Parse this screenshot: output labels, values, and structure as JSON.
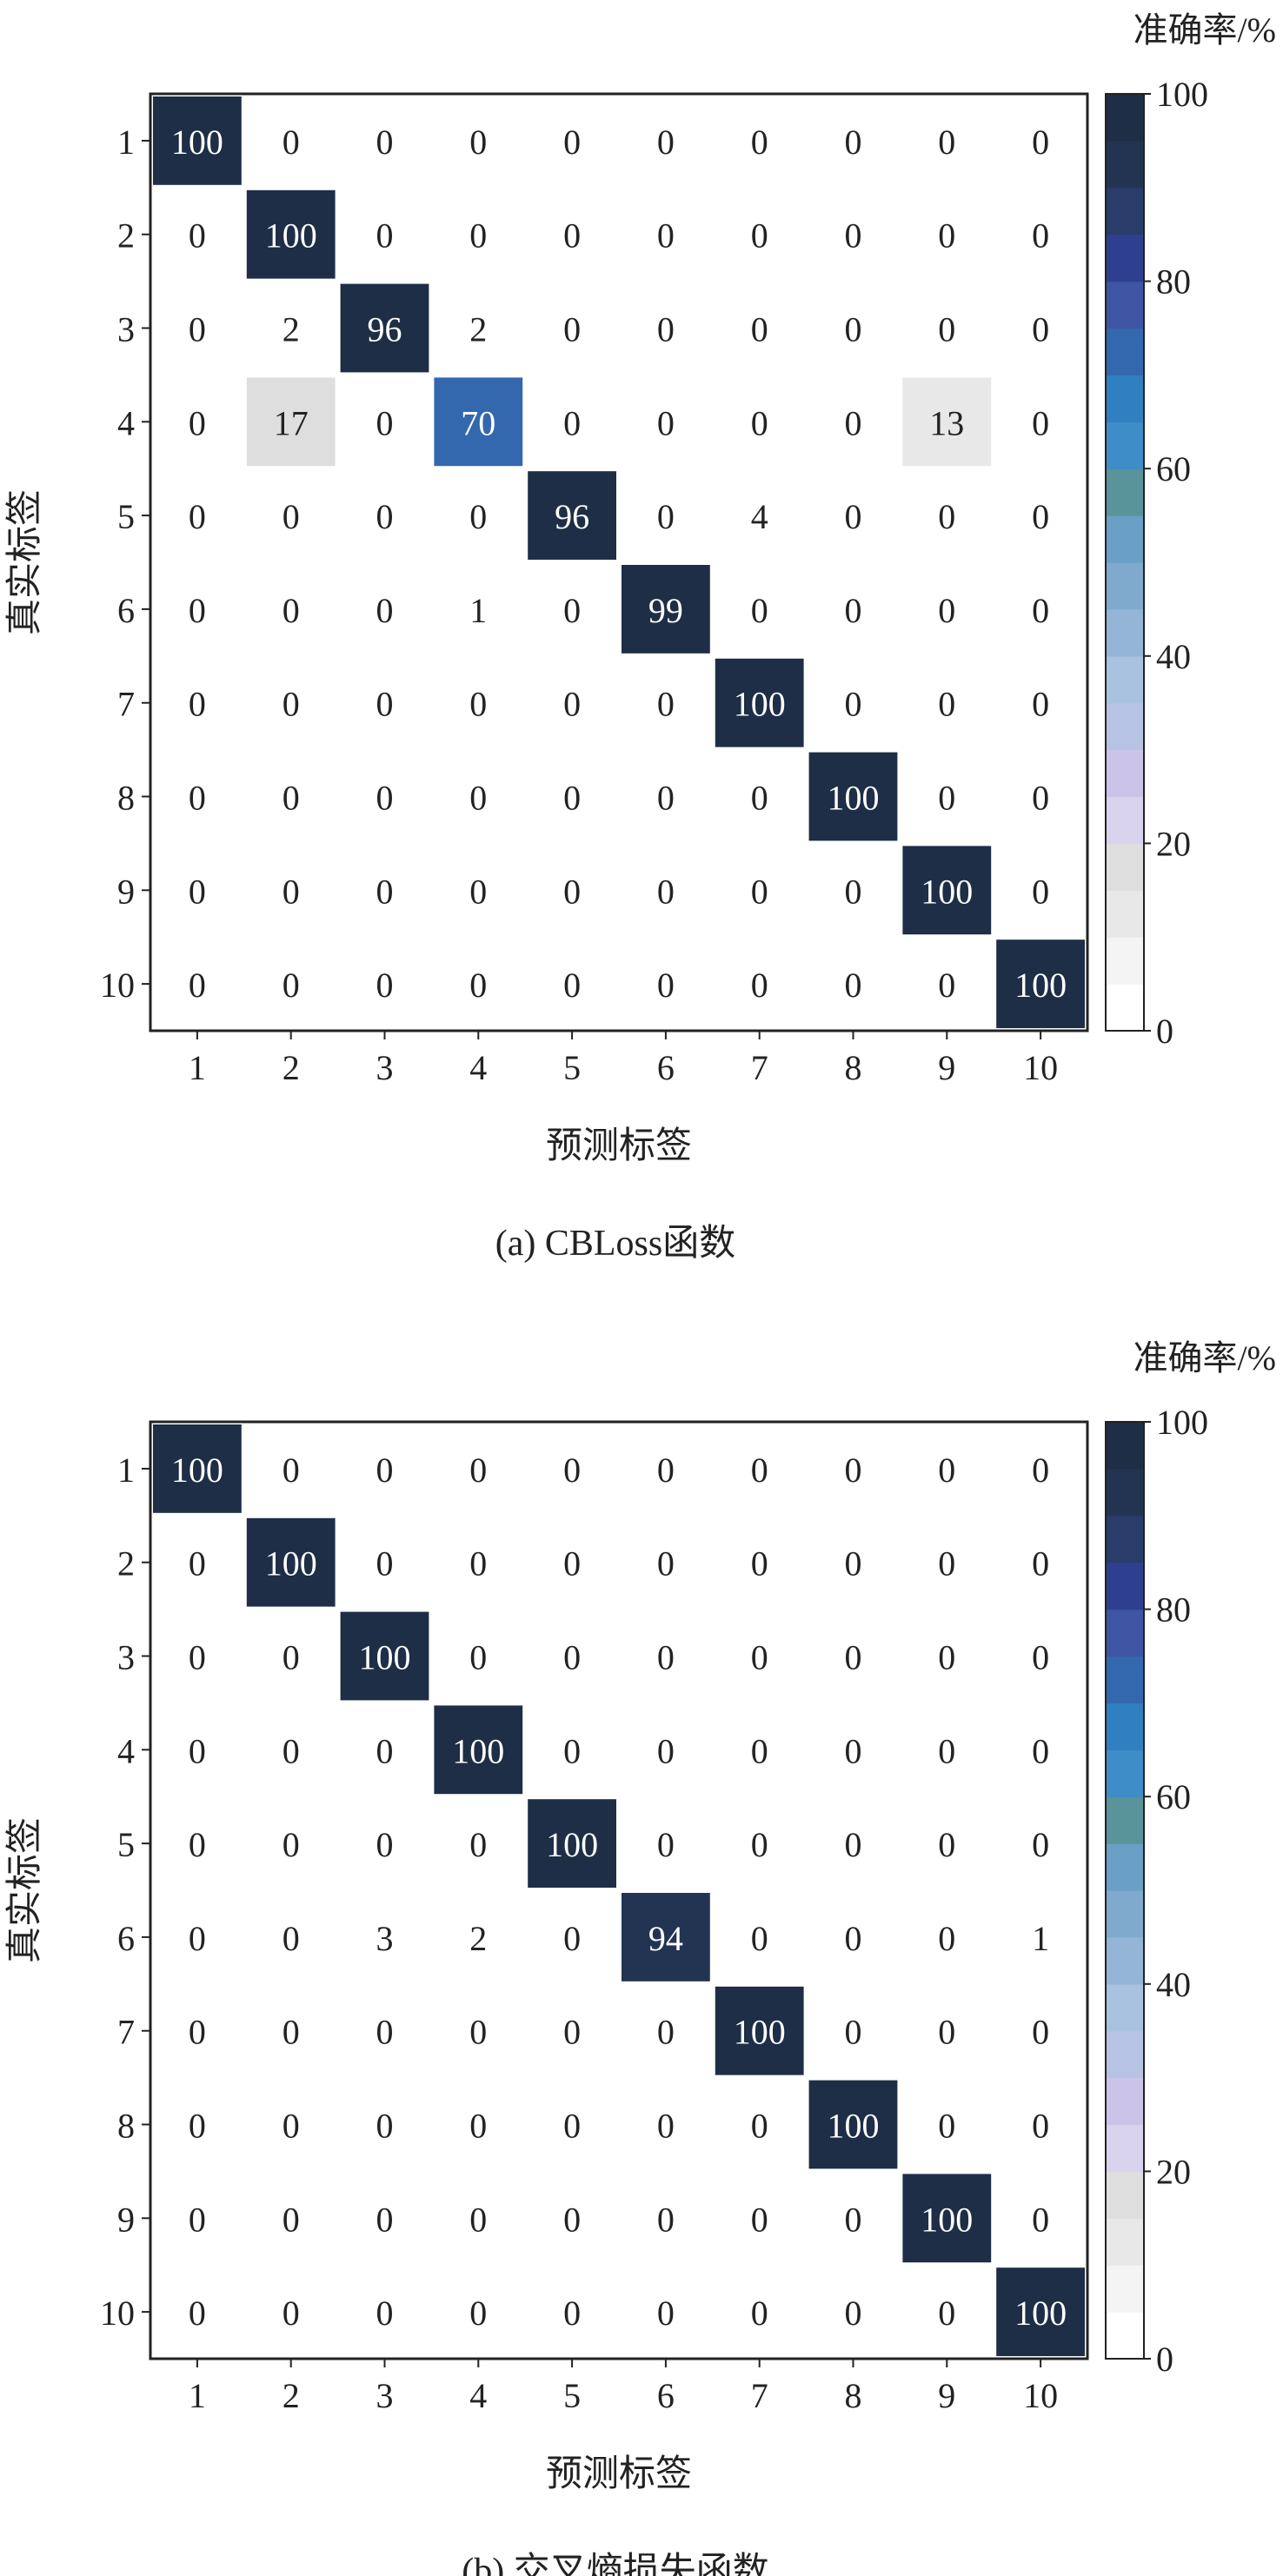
{
  "chart_data": [
    {
      "type": "heatmap",
      "caption": "(a) CBLoss函数",
      "xlabel": "预测标签",
      "ylabel": "真实标签",
      "x_ticklabels": [
        "1",
        "2",
        "3",
        "4",
        "5",
        "6",
        "7",
        "8",
        "9",
        "10"
      ],
      "y_ticklabels": [
        "1",
        "2",
        "3",
        "4",
        "5",
        "6",
        "7",
        "8",
        "9",
        "10"
      ],
      "colorbar": {
        "title": "准确率/%",
        "range": [
          0,
          100
        ],
        "ticks": [
          "0",
          "20",
          "40",
          "60",
          "80",
          "100"
        ]
      },
      "matrix": [
        [
          100,
          0,
          0,
          0,
          0,
          0,
          0,
          0,
          0,
          0
        ],
        [
          0,
          100,
          0,
          0,
          0,
          0,
          0,
          0,
          0,
          0
        ],
        [
          0,
          2,
          96,
          2,
          0,
          0,
          0,
          0,
          0,
          0
        ],
        [
          0,
          17,
          0,
          70,
          0,
          0,
          0,
          0,
          13,
          0
        ],
        [
          0,
          0,
          0,
          0,
          96,
          0,
          4,
          0,
          0,
          0
        ],
        [
          0,
          0,
          0,
          1,
          0,
          99,
          0,
          0,
          0,
          0
        ],
        [
          0,
          0,
          0,
          0,
          0,
          0,
          100,
          0,
          0,
          0
        ],
        [
          0,
          0,
          0,
          0,
          0,
          0,
          0,
          100,
          0,
          0
        ],
        [
          0,
          0,
          0,
          0,
          0,
          0,
          0,
          0,
          100,
          0
        ],
        [
          0,
          0,
          0,
          0,
          0,
          0,
          0,
          0,
          0,
          100
        ]
      ]
    },
    {
      "type": "heatmap",
      "caption": "(b) 交叉熵损失函数",
      "xlabel": "预测标签",
      "ylabel": "真实标签",
      "x_ticklabels": [
        "1",
        "2",
        "3",
        "4",
        "5",
        "6",
        "7",
        "8",
        "9",
        "10"
      ],
      "y_ticklabels": [
        "1",
        "2",
        "3",
        "4",
        "5",
        "6",
        "7",
        "8",
        "9",
        "10"
      ],
      "colorbar": {
        "title": "准确率/%",
        "range": [
          0,
          100
        ],
        "ticks": [
          "0",
          "20",
          "40",
          "60",
          "80",
          "100"
        ]
      },
      "matrix": [
        [
          100,
          0,
          0,
          0,
          0,
          0,
          0,
          0,
          0,
          0
        ],
        [
          0,
          100,
          0,
          0,
          0,
          0,
          0,
          0,
          0,
          0
        ],
        [
          0,
          0,
          100,
          0,
          0,
          0,
          0,
          0,
          0,
          0
        ],
        [
          0,
          0,
          0,
          100,
          0,
          0,
          0,
          0,
          0,
          0
        ],
        [
          0,
          0,
          0,
          0,
          100,
          0,
          0,
          0,
          0,
          0
        ],
        [
          0,
          0,
          3,
          2,
          0,
          94,
          0,
          0,
          0,
          1
        ],
        [
          0,
          0,
          0,
          0,
          0,
          0,
          100,
          0,
          0,
          0
        ],
        [
          0,
          0,
          0,
          0,
          0,
          0,
          0,
          100,
          0,
          0
        ],
        [
          0,
          0,
          0,
          0,
          0,
          0,
          0,
          0,
          100,
          0
        ],
        [
          0,
          0,
          0,
          0,
          0,
          0,
          0,
          0,
          0,
          100
        ]
      ]
    }
  ],
  "colormap": [
    "#ffffff",
    "#f4f4f4",
    "#e8e8e8",
    "#dedede",
    "#d9d3ee",
    "#ccc4e8",
    "#b6c3e4",
    "#a8c2e0",
    "#94b5d6",
    "#80a9ce",
    "#6a9fc6",
    "#58949a",
    "#3e8dc8",
    "#2f7fc1",
    "#3468ae",
    "#3d55a2",
    "#2f3f8f",
    "#2a3c6a",
    "#233453",
    "#1d2e46"
  ]
}
